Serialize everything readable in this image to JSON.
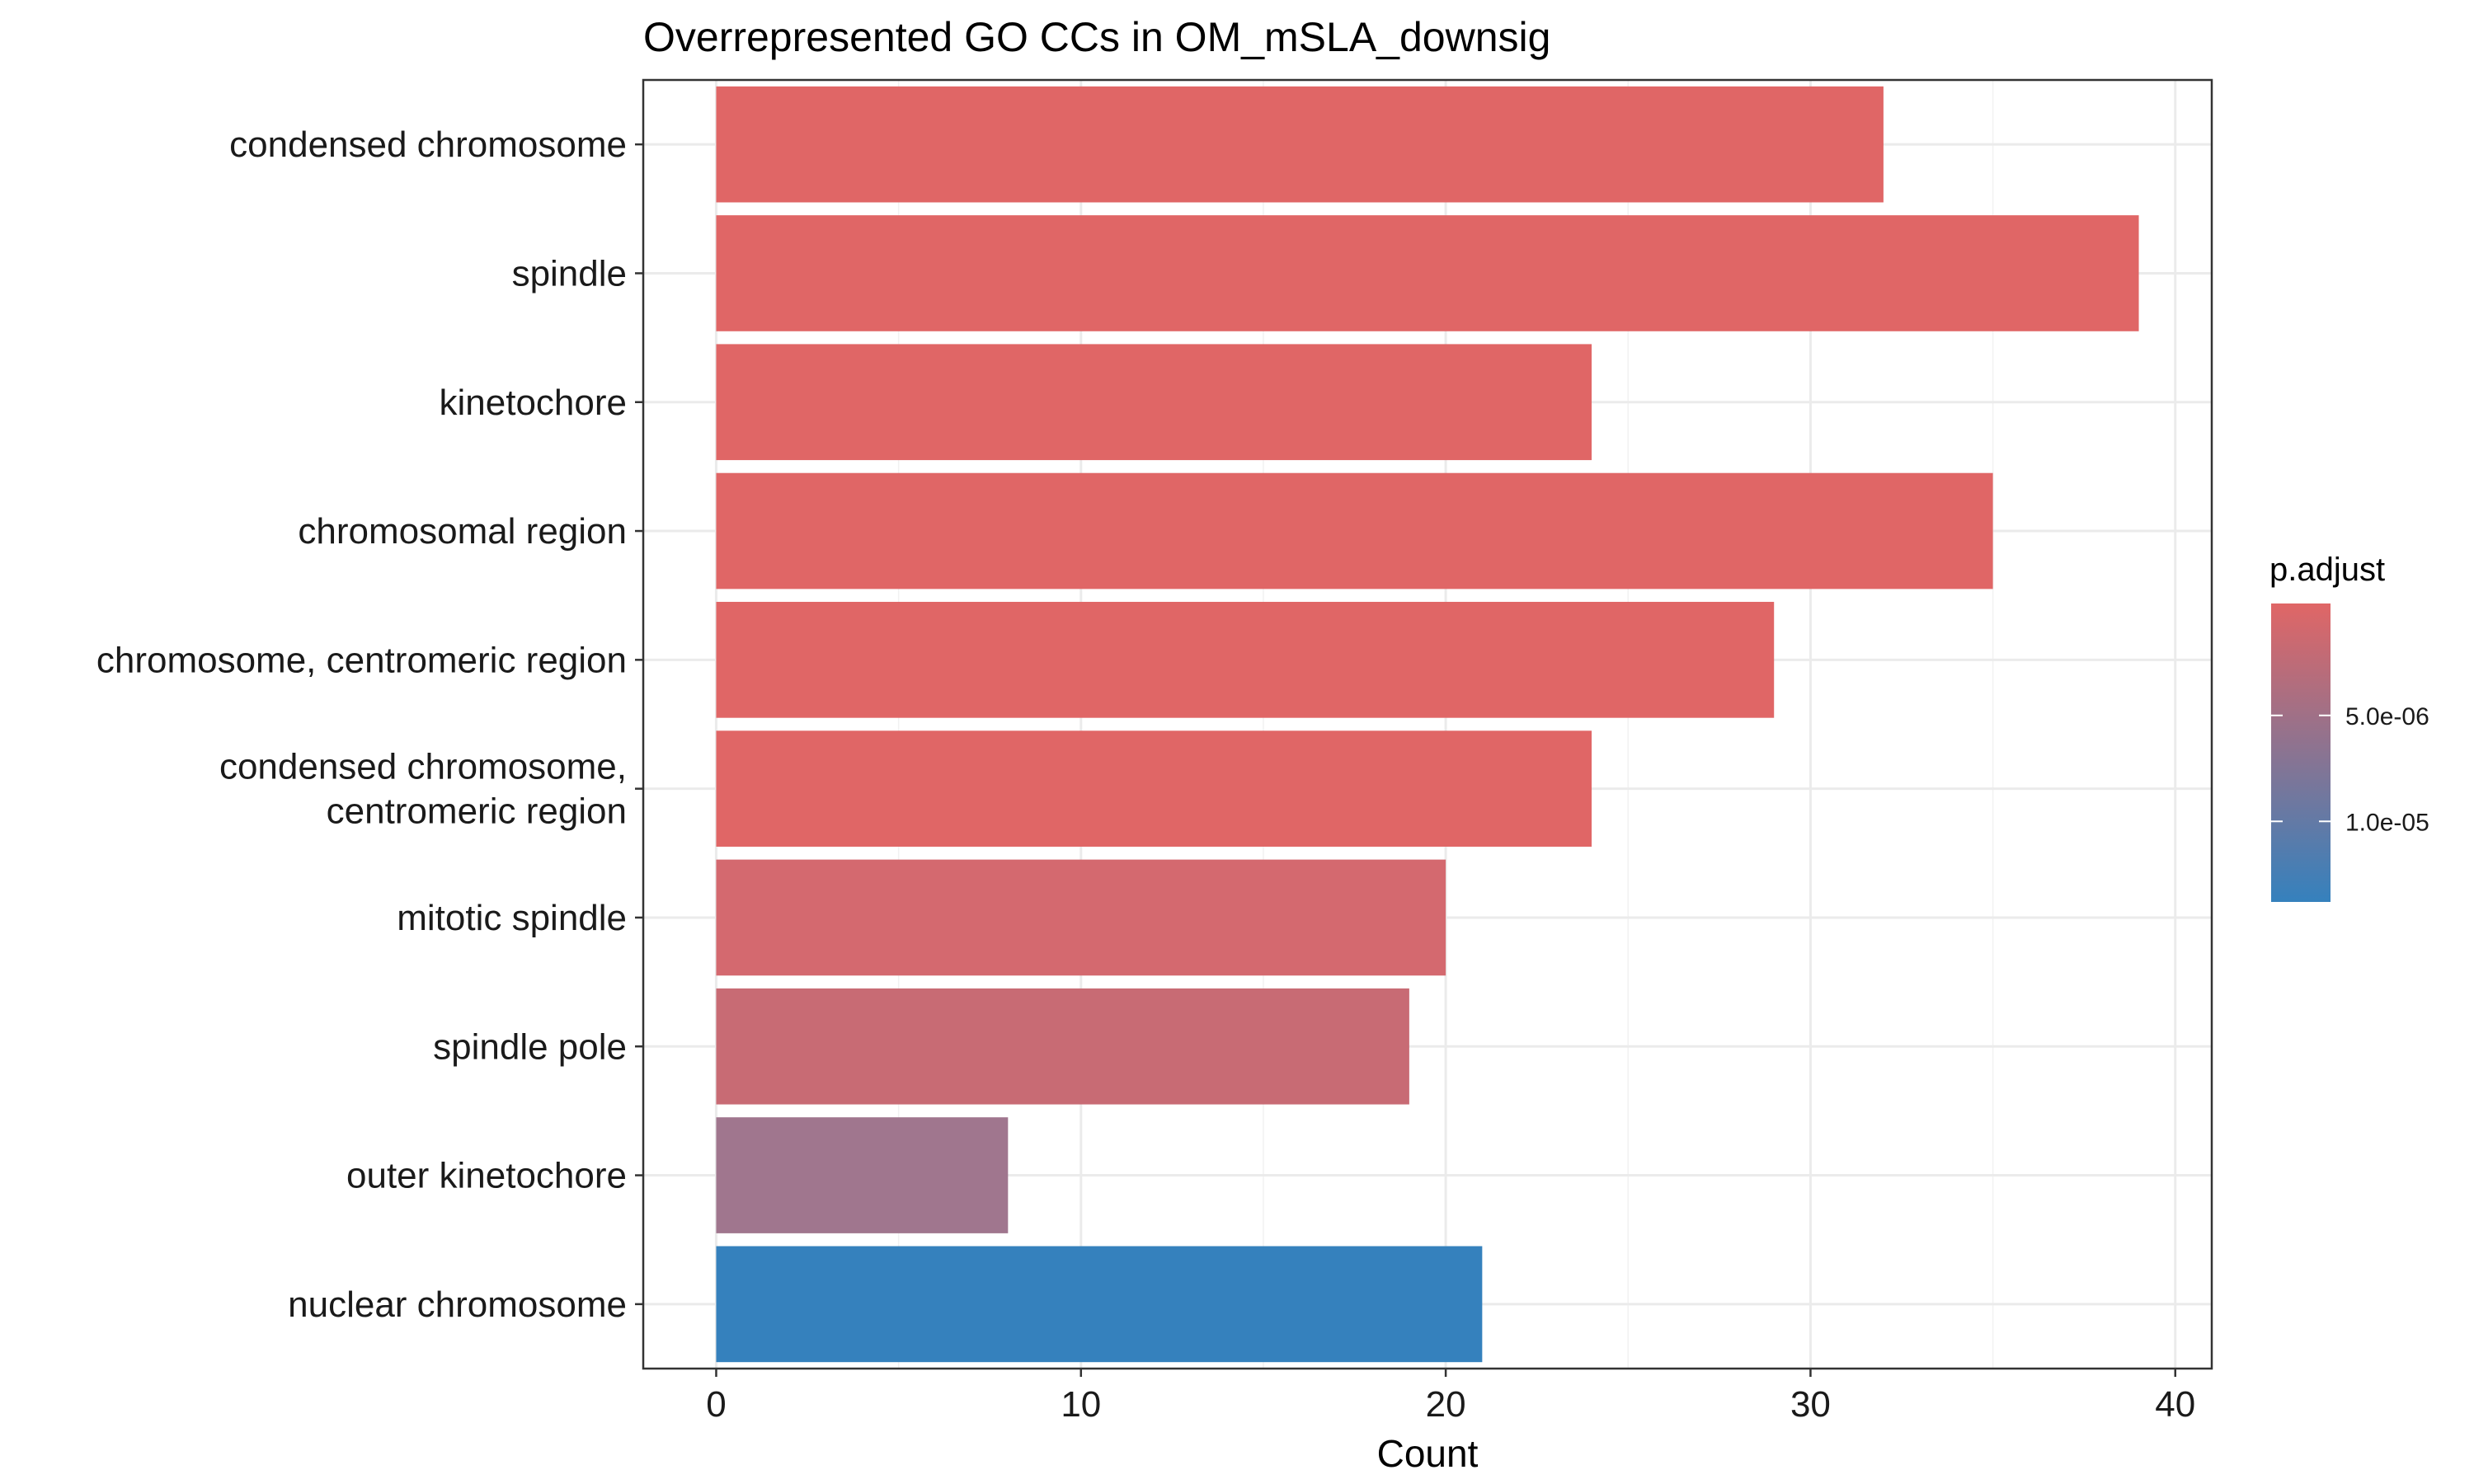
{
  "chart_data": {
    "type": "bar",
    "orientation": "horizontal",
    "title": "Overrepresented GO CCs in OM_mSLA_downsig",
    "xlabel": "Count",
    "ylabel": "",
    "xlim": [
      -2,
      41
    ],
    "xticks": [
      0,
      10,
      20,
      30,
      40
    ],
    "xtick_labels": [
      "0",
      "10",
      "20",
      "30",
      "40"
    ],
    "grid": true,
    "categories": [
      [
        "condensed chromosome"
      ],
      [
        "spindle"
      ],
      [
        "kinetochore"
      ],
      [
        "chromosomal region"
      ],
      [
        "chromosome, centromeric region"
      ],
      [
        "condensed chromosome,",
        "centromeric region"
      ],
      [
        "mitotic spindle"
      ],
      [
        "spindle pole"
      ],
      [
        "outer kinetochore"
      ],
      [
        "nuclear chromosome"
      ]
    ],
    "values": [
      32,
      39,
      24,
      35,
      29,
      24,
      20,
      19,
      8,
      21
    ],
    "fill_colors": [
      "#e06666",
      "#e06666",
      "#e06666",
      "#e06666",
      "#e06666",
      "#e06666",
      "#d4696f",
      "#c86b74",
      "#a0768e",
      "#3581bd"
    ],
    "legend": {
      "title": "p.adjust",
      "position": "right",
      "gradient_top_color": "#e06666",
      "gradient_bottom_color": "#3581bd",
      "tick_labels": [
        "5.0e-06",
        "1.0e-05"
      ],
      "tick_fractions": [
        0.375,
        0.73
      ]
    }
  }
}
